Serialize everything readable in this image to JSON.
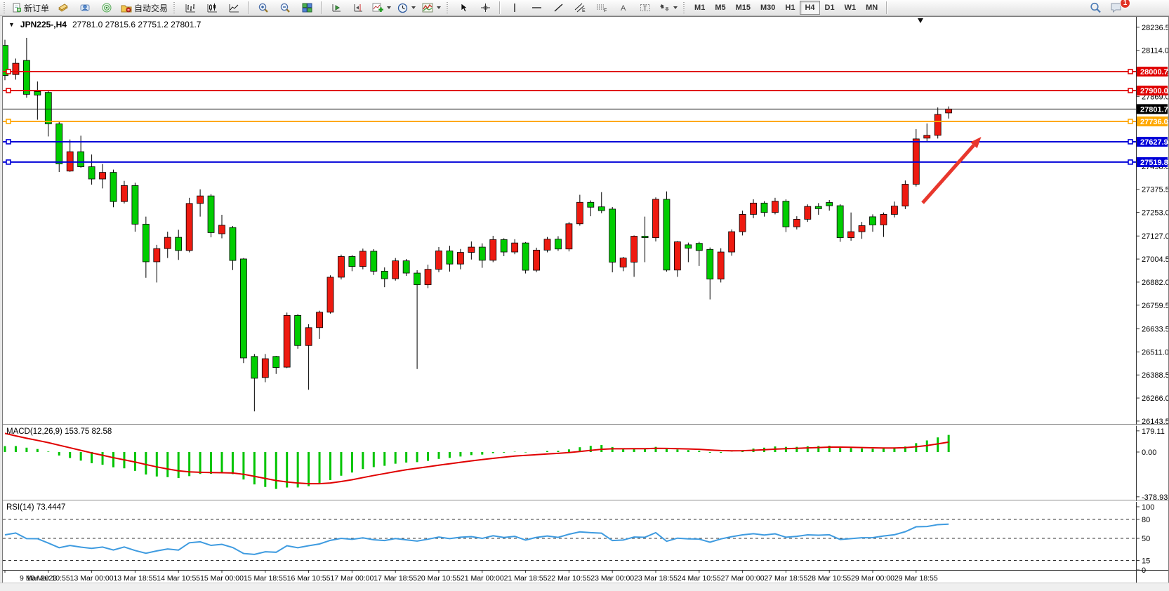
{
  "toolbar": {
    "new_order_label": "新订单",
    "autotrade_label": "自动交易",
    "icons": [
      "new-order-icon",
      "quotes-icon",
      "terminal-user-icon",
      "signals-icon",
      "autotrading-icon",
      "bar-chart-icon",
      "candlestick-chart-icon",
      "line-chart-icon",
      "zoom-in-icon",
      "zoom-out-icon",
      "tile-windows-icon",
      "auto-scroll-icon",
      "chart-shift-icon",
      "indicators-icon",
      "periods-icon",
      "templates-icon",
      "cursor-icon",
      "crosshair-icon",
      "vertical-line-icon",
      "horizontal-line-icon",
      "trendline-icon",
      "equidistant-channel-icon",
      "fibonacci-icon",
      "text-icon",
      "text-label-icon",
      "arrows-tool-icon",
      "search-icon",
      "chat-icon"
    ],
    "timeframes": [
      "M1",
      "M5",
      "M15",
      "M30",
      "H1",
      "H4",
      "D1",
      "W1",
      "MN"
    ],
    "active_timeframe": "H4",
    "notification_count": "1"
  },
  "chart": {
    "title_symbol": "JPN225-,H4",
    "title_ohlc": "27781.0 27815.6 27751.2 27801.7",
    "price_axis_ticks": [
      28236.5,
      28114.0,
      27991.5,
      27869.0,
      27746.5,
      27624.0,
      27498.0,
      27375.5,
      27253.0,
      27127.0,
      27004.5,
      26882.0,
      26759.5,
      26633.5,
      26511.0,
      26388.5,
      26266.0,
      26143.5
    ],
    "hlines": [
      {
        "price": 28000.7,
        "label": "28000.7",
        "color": "#e00000"
      },
      {
        "price": 27900.0,
        "label": "27900.0",
        "color": "#e00000"
      },
      {
        "price": 27736.0,
        "label": "27736.0",
        "color": "#ffa800"
      },
      {
        "price": 27627.9,
        "label": "27627.9",
        "color": "#0000d8"
      },
      {
        "price": 27519.8,
        "label": "27519.8",
        "color": "#0000d8"
      }
    ],
    "current_price": {
      "price": 27801.7,
      "label": "27801.7",
      "color": "#000000"
    },
    "time_axis_labels": [
      "9 Mar 2023",
      "10 Mar 10:55",
      "13 Mar 00:00",
      "13 Mar 18:55",
      "14 Mar 10:55",
      "15 Mar 00:00",
      "15 Mar 18:55",
      "16 Mar 10:55",
      "17 Mar 00:00",
      "17 Mar 18:55",
      "20 Mar 10:55",
      "21 Mar 00:00",
      "21 Mar 18:55",
      "22 Mar 10:55",
      "23 Mar 00:00",
      "23 Mar 18:55",
      "24 Mar 10:55",
      "27 Mar 00:00",
      "27 Mar 18:55",
      "28 Mar 10:55",
      "29 Mar 00:00",
      "29 Mar 18:55"
    ],
    "colors": {
      "bull": "#ee1a10",
      "bear": "#00cd00",
      "wick": "#000000",
      "macd_hist": "#00c400",
      "macd_signal": "#e00000",
      "rsi_line": "#3e9be0"
    }
  },
  "chart_data": {
    "type": "candlestick",
    "symbol": "JPN225-",
    "timeframe": "H4",
    "ohlc": [
      [
        28140,
        28170,
        27955,
        27980
      ],
      [
        27985,
        28070,
        27958,
        28045
      ],
      [
        28060,
        28180,
        27862,
        27880
      ],
      [
        27895,
        27948,
        27745,
        27876
      ],
      [
        27890,
        27902,
        27656,
        27723
      ],
      [
        27723,
        27738,
        27467,
        27510
      ],
      [
        27472,
        27640,
        27468,
        27575
      ],
      [
        27575,
        27660,
        27490,
        27495
      ],
      [
        27495,
        27560,
        27400,
        27430
      ],
      [
        27430,
        27510,
        27380,
        27465
      ],
      [
        27465,
        27480,
        27280,
        27310
      ],
      [
        27310,
        27420,
        27300,
        27395
      ],
      [
        27395,
        27410,
        27150,
        27190
      ],
      [
        27190,
        27230,
        26905,
        26990
      ],
      [
        26990,
        27080,
        26880,
        27060
      ],
      [
        27060,
        27150,
        27010,
        27120
      ],
      [
        27120,
        27160,
        27000,
        27050
      ],
      [
        27050,
        27330,
        27040,
        27300
      ],
      [
        27300,
        27375,
        27230,
        27340
      ],
      [
        27340,
        27350,
        27120,
        27145
      ],
      [
        27139,
        27240,
        27115,
        27184
      ],
      [
        27172,
        27180,
        26946,
        26997
      ],
      [
        27005,
        27010,
        26452,
        26479
      ],
      [
        26487,
        26500,
        26195,
        26371
      ],
      [
        26375,
        26500,
        26350,
        26475
      ],
      [
        26487,
        26490,
        26394,
        26428
      ],
      [
        26430,
        26720,
        26425,
        26705
      ],
      [
        26705,
        26712,
        26528,
        26545
      ],
      [
        26545,
        26658,
        26310,
        26640
      ],
      [
        26640,
        26730,
        26580,
        26722
      ],
      [
        26722,
        26918,
        26715,
        26908
      ],
      [
        26908,
        27028,
        26896,
        27018
      ],
      [
        27018,
        27026,
        26940,
        26965
      ],
      [
        26965,
        27060,
        26950,
        27046
      ],
      [
        27046,
        27057,
        26920,
        26940
      ],
      [
        26940,
        26960,
        26855,
        26900
      ],
      [
        26900,
        27010,
        26890,
        26995
      ],
      [
        26995,
        27005,
        26915,
        26930
      ],
      [
        26930,
        26945,
        26420,
        26868
      ],
      [
        26868,
        26975,
        26850,
        26950
      ],
      [
        26950,
        27068,
        26935,
        27048
      ],
      [
        27048,
        27075,
        26938,
        26978
      ],
      [
        26978,
        27058,
        26950,
        27040
      ],
      [
        27040,
        27098,
        27002,
        27068
      ],
      [
        27068,
        27088,
        26958,
        26998
      ],
      [
        26998,
        27128,
        26988,
        27108
      ],
      [
        27108,
        27115,
        27020,
        27042
      ],
      [
        27042,
        27110,
        27030,
        27090
      ],
      [
        27090,
        27095,
        26928,
        26945
      ],
      [
        26945,
        27065,
        26935,
        27052
      ],
      [
        27052,
        27122,
        27040,
        27110
      ],
      [
        27110,
        27126,
        27048,
        27058
      ],
      [
        27058,
        27202,
        27045,
        27192
      ],
      [
        27192,
        27346,
        27182,
        27306
      ],
      [
        27306,
        27316,
        27232,
        27280
      ],
      [
        27282,
        27360,
        27248,
        27262
      ],
      [
        27270,
        27281,
        26934,
        26988
      ],
      [
        26962,
        27016,
        26940,
        27010
      ],
      [
        26988,
        27130,
        26910,
        27126
      ],
      [
        27126,
        27230,
        26988,
        27118
      ],
      [
        27118,
        27332,
        27098,
        27322
      ],
      [
        27322,
        27364,
        26938,
        26946
      ],
      [
        26946,
        27100,
        26910,
        27096
      ],
      [
        27080,
        27092,
        26988,
        27062
      ],
      [
        27088,
        27096,
        26968,
        27050
      ],
      [
        27056,
        27066,
        26790,
        26898
      ],
      [
        26898,
        27062,
        26880,
        27042
      ],
      [
        27042,
        27162,
        27022,
        27150
      ],
      [
        27150,
        27262,
        27130,
        27242
      ],
      [
        27242,
        27322,
        27222,
        27302
      ],
      [
        27302,
        27312,
        27230,
        27252
      ],
      [
        27252,
        27330,
        27242,
        27312
      ],
      [
        27312,
        27322,
        27148,
        27176
      ],
      [
        27176,
        27232,
        27162,
        27216
      ],
      [
        27216,
        27295,
        27202,
        27284
      ],
      [
        27284,
        27302,
        27240,
        27272
      ],
      [
        27305,
        27318,
        27262,
        27288
      ],
      [
        27288,
        27296,
        27096,
        27118
      ],
      [
        27118,
        27252,
        27102,
        27150
      ],
      [
        27150,
        27202,
        27112,
        27182
      ],
      [
        27229,
        27242,
        27150,
        27186
      ],
      [
        27186,
        27252,
        27122,
        27242
      ],
      [
        27242,
        27310,
        27226,
        27286
      ],
      [
        27286,
        27422,
        27270,
        27402
      ],
      [
        27402,
        27695,
        27390,
        27643
      ],
      [
        27647,
        27725,
        27631,
        27662
      ],
      [
        27662,
        27810,
        27645,
        27773
      ],
      [
        27781,
        27815.6,
        27751.2,
        27801.7
      ]
    ],
    "macd": {
      "label": "MACD(12,26,9)",
      "values_label": "153.75 82.58",
      "params": [
        12,
        26,
        9
      ],
      "scale_ticks": [
        {
          "value": 179.11,
          "label": "179.11"
        },
        {
          "value": 0,
          "label": "0.00"
        },
        {
          "value": -378.93,
          "label": "-378.93"
        }
      ]
    },
    "rsi": {
      "label": "RSI(14)",
      "value_label": "73.4447",
      "period": 14,
      "levels": [
        80,
        50,
        15
      ],
      "scale_ticks": [
        {
          "value": 100,
          "label": "100"
        },
        {
          "value": 80,
          "label": "80"
        },
        {
          "value": 50,
          "label": "50"
        },
        {
          "value": 15,
          "label": "15"
        },
        {
          "value": 0,
          "label": "0"
        }
      ]
    }
  },
  "annotations": {
    "arrow": {
      "from_bar": 84.6,
      "from_price": 27303,
      "to_bar": 90,
      "to_price": 27654,
      "color": "#e8372d"
    }
  }
}
